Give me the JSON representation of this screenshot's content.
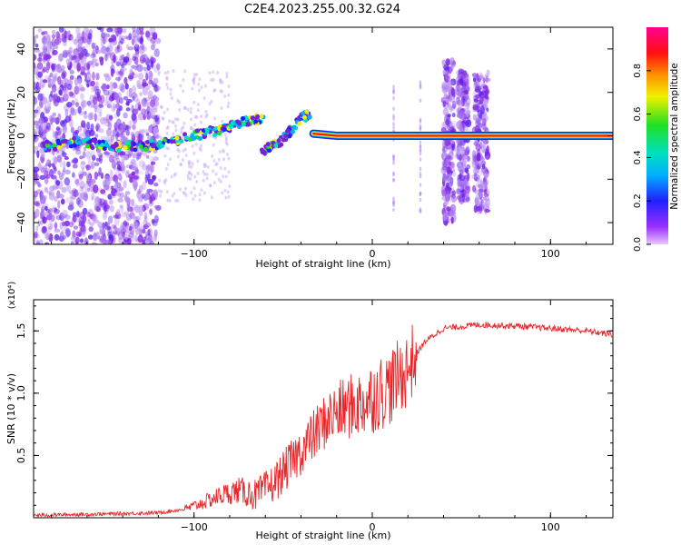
{
  "title": "C2E4.2023.255.00.32.G24",
  "colors": {
    "snr_line": "#e8262a",
    "scatter_low": "#8a2be2",
    "track_high": "#ff0000"
  },
  "chart_data": [
    {
      "type": "heatmap",
      "xlabel": "Height of straight line (km)",
      "ylabel": "Frequency (Hz)",
      "xlim": [
        -190,
        135
      ],
      "ylim": [
        -50,
        50
      ],
      "xticks": [
        -100,
        0,
        100
      ],
      "yticks": [
        -40,
        -20,
        0,
        20,
        40
      ],
      "colorbar": {
        "label": "Normalized spectral amplitude",
        "range": [
          0,
          1
        ],
        "ticks": [
          "0.0",
          "0.2",
          "0.4",
          "0.6",
          "0.8"
        ],
        "colormap": "rainbow (violet-blue-cyan-green-yellow-orange-red-magenta)"
      },
      "tracks": [
        {
          "x": [
            -185,
            -165,
            -140,
            -120,
            -100,
            -80,
            -70,
            -60
          ],
          "y": [
            -5,
            -3,
            -5,
            -4,
            0,
            4,
            7,
            8
          ]
        },
        {
          "x": [
            -62,
            -52,
            -45,
            -40,
            -35
          ],
          "y": [
            -7,
            -3,
            3,
            8,
            10
          ]
        },
        {
          "x": [
            -33,
            -20,
            0,
            20,
            40,
            65,
            135
          ],
          "y": [
            1,
            0,
            0,
            0,
            0,
            0,
            0
          ]
        }
      ],
      "noise_regions": [
        {
          "x": [
            -190,
            -120
          ],
          "y": [
            -50,
            50
          ]
        },
        {
          "x": [
            40,
            46
          ],
          "y": [
            -40,
            35
          ]
        },
        {
          "x": [
            48,
            54
          ],
          "y": [
            -30,
            30
          ]
        },
        {
          "x": [
            57,
            65
          ],
          "y": [
            -35,
            30
          ]
        }
      ]
    },
    {
      "type": "line",
      "xlabel": "Height of straight line (km)",
      "ylabel": "SNR (10 * v/v)",
      "scale_label": "(x10⁴)",
      "xlim": [
        -190,
        135
      ],
      "ylim": [
        0,
        1.75
      ],
      "xticks": [
        -100,
        0,
        100
      ],
      "yticks": [
        0.5,
        1.0,
        1.5
      ],
      "series": [
        {
          "x": [
            -190,
            -150,
            -120,
            -105,
            -95,
            -85,
            -75,
            -65,
            -55,
            -45,
            -35,
            -25,
            -15,
            -5,
            0,
            10,
            20,
            25,
            30,
            40,
            60,
            80,
            100,
            120,
            135
          ],
          "y": [
            0.02,
            0.03,
            0.04,
            0.07,
            0.12,
            0.18,
            0.22,
            0.18,
            0.28,
            0.45,
            0.62,
            0.8,
            0.88,
            0.92,
            0.97,
            1.05,
            1.2,
            1.32,
            1.42,
            1.52,
            1.55,
            1.54,
            1.52,
            1.5,
            1.47
          ]
        }
      ]
    }
  ]
}
